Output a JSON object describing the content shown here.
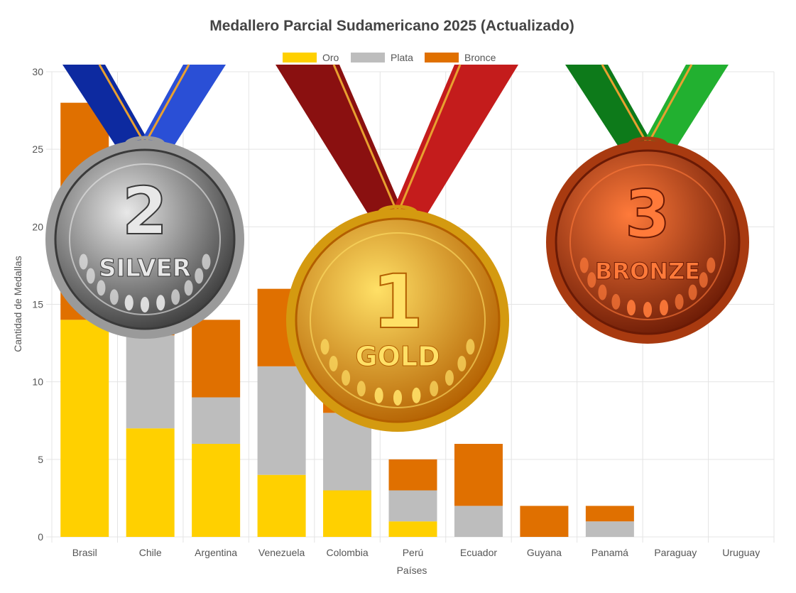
{
  "chart_data": {
    "type": "bar",
    "stacked": true,
    "title": "Medallero Parcial Sudamericano 2025 (Actualizado)",
    "xlabel": "Países",
    "ylabel": "Cantidad de Medallas",
    "ylim": [
      0,
      30
    ],
    "yticks": [
      0,
      5,
      10,
      15,
      20,
      25,
      30
    ],
    "grid": true,
    "legend_position": "top",
    "categories": [
      "Brasil",
      "Chile",
      "Argentina",
      "Venezuela",
      "Colombia",
      "Perú",
      "Ecuador",
      "Guyana",
      "Panamá",
      "Paraguay",
      "Uruguay"
    ],
    "series": [
      {
        "name": "Oro",
        "color": "#ffd000",
        "values": [
          14,
          7,
          6,
          4,
          3,
          1,
          0,
          0,
          0,
          0,
          0
        ]
      },
      {
        "name": "Plata",
        "color": "#bdbdbd",
        "values": [
          0,
          6,
          3,
          7,
          5,
          2,
          2,
          0,
          1,
          0,
          0
        ]
      },
      {
        "name": "Bronce",
        "color": "#e07000",
        "values": [
          14,
          2,
          5,
          5,
          3,
          2,
          4,
          2,
          1,
          0,
          0
        ]
      }
    ]
  },
  "medals": [
    {
      "name": "silver",
      "number": "2",
      "label": "SILVER",
      "ribbon": "#0d2aa0",
      "ribbon_light": "#2a4fd6",
      "face_light": "#e8e8e8",
      "face_dark": "#3a3a3a",
      "rim": "#9a9a9a"
    },
    {
      "name": "gold",
      "number": "1",
      "label": "GOLD",
      "ribbon": "#8a1010",
      "ribbon_light": "#c41c1c",
      "face_light": "#ffe066",
      "face_dark": "#b35f00",
      "rim": "#d49a10"
    },
    {
      "name": "bronze",
      "number": "3",
      "label": "BRONZE",
      "ribbon": "#0d7a1a",
      "ribbon_light": "#22b030",
      "face_light": "#ff7a3a",
      "face_dark": "#6a1a05",
      "rim": "#a83a10"
    }
  ]
}
